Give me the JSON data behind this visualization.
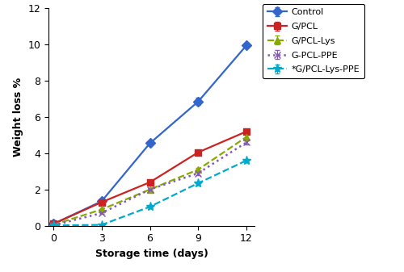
{
  "x": [
    0,
    3,
    6,
    9,
    12
  ],
  "series": {
    "Control": {
      "y": [
        0.1,
        1.35,
        4.55,
        6.85,
        9.95
      ],
      "yerr": [
        0.05,
        0.05,
        0.1,
        0.2,
        0.1
      ],
      "color": "#3366cc",
      "linestyle": "-",
      "marker": "D",
      "markersize": 6,
      "linewidth": 1.6
    },
    "G/PCL": {
      "y": [
        0.1,
        1.3,
        2.4,
        4.05,
        5.2
      ],
      "yerr": [
        0.05,
        0.05,
        0.08,
        0.1,
        0.1
      ],
      "color": "#cc2222",
      "linestyle": "-",
      "marker": "s",
      "markersize": 6,
      "linewidth": 1.6
    },
    "G/PCL-Lys": {
      "y": [
        0.05,
        0.9,
        2.0,
        3.1,
        4.9
      ],
      "yerr": [
        0.02,
        0.05,
        0.08,
        0.1,
        0.1
      ],
      "color": "#88aa00",
      "linestyle": "--",
      "marker": "^",
      "markersize": 6,
      "linewidth": 1.6
    },
    "G-PCL-PPE": {
      "y": [
        0.02,
        0.7,
        2.0,
        2.9,
        4.6
      ],
      "yerr": [
        0.02,
        0.05,
        0.08,
        0.1,
        0.1
      ],
      "color": "#8855bb",
      "linestyle": ":",
      "marker": "x",
      "markersize": 6,
      "linewidth": 1.8
    },
    "*G/PCL-Lys-PPE": {
      "y": [
        0.02,
        0.05,
        1.05,
        2.35,
        3.6
      ],
      "yerr": [
        0.02,
        0.02,
        0.08,
        0.1,
        0.1
      ],
      "color": "#00aacc",
      "linestyle": "--",
      "marker": "*",
      "markersize": 8,
      "linewidth": 1.6
    }
  },
  "xlabel": "Storage time (days)",
  "ylabel": "Weight loss %",
  "xlim": [
    -0.3,
    12.5
  ],
  "ylim": [
    0,
    12
  ],
  "yticks": [
    0,
    2,
    4,
    6,
    8,
    10,
    12
  ],
  "xticks": [
    0,
    3,
    6,
    9,
    12
  ],
  "legend_labels": [
    "Control",
    "G/PCL",
    "G/PCL-Lys",
    "G-PCL-PPE",
    "*G/PCL-Lys-PPE"
  ],
  "background_color": "#ffffff"
}
